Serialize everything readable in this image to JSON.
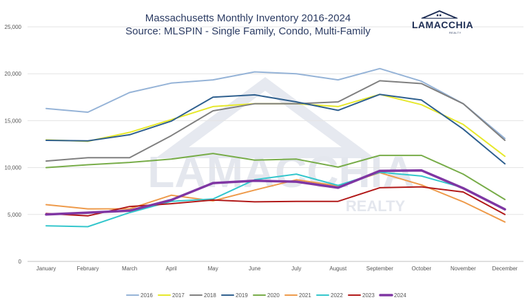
{
  "title_line1": "Massachusetts Monthly Inventory 2016-2024",
  "title_line2": "Source: MLSPIN - Single Family, Condo, Multi-Family",
  "logo": {
    "name": "LAMACCHIA",
    "sub": "REALTY"
  },
  "watermark": {
    "name": "LAMACCHIA",
    "sub": "REALTY"
  },
  "chart_data": {
    "type": "line",
    "title": "Massachusetts Monthly Inventory 2016-2024",
    "subtitle": "Source: MLSPIN - Single Family, Condo, Multi-Family",
    "categories": [
      "January",
      "February",
      "March",
      "April",
      "May",
      "June",
      "July",
      "August",
      "September",
      "October",
      "November",
      "December"
    ],
    "ylim": [
      0,
      25000
    ],
    "yticks": [
      0,
      5000,
      10000,
      15000,
      20000,
      25000
    ],
    "ytick_labels": [
      "0",
      "5,000",
      "10,000",
      "15,000",
      "20,000",
      "25,000"
    ],
    "grid": true,
    "legend_position": "bottom",
    "series": [
      {
        "name": "2016",
        "color": "#95b3d7",
        "width": 2,
        "values": [
          16300,
          15900,
          18000,
          19000,
          19350,
          20200,
          20000,
          19350,
          20550,
          19200,
          16800,
          13100
        ]
      },
      {
        "name": "2017",
        "color": "#e6e82a",
        "width": 2,
        "values": [
          12950,
          12800,
          13750,
          15100,
          16500,
          16800,
          16800,
          16500,
          17800,
          16700,
          14600,
          11200
        ]
      },
      {
        "name": "2018",
        "color": "#7f7f7f",
        "width": 2,
        "values": [
          10700,
          11050,
          11050,
          13400,
          16050,
          16800,
          16800,
          17000,
          19250,
          18950,
          16800,
          12900
        ]
      },
      {
        "name": "2019",
        "color": "#2e5f8e",
        "width": 2,
        "values": [
          12900,
          12850,
          13500,
          14950,
          17500,
          17750,
          17000,
          16100,
          17800,
          17200,
          14100,
          10400
        ]
      },
      {
        "name": "2020",
        "color": "#77ac48",
        "width": 2,
        "values": [
          10000,
          10300,
          10550,
          10900,
          11500,
          10800,
          10900,
          10050,
          11300,
          11300,
          9300,
          6600
        ]
      },
      {
        "name": "2021",
        "color": "#ee9a4a",
        "width": 2,
        "values": [
          6050,
          5600,
          5600,
          7050,
          6450,
          7600,
          8700,
          8050,
          9450,
          8150,
          6350,
          4200
        ]
      },
      {
        "name": "2022",
        "color": "#33c6cc",
        "width": 2,
        "values": [
          3800,
          3700,
          5200,
          6400,
          6650,
          8700,
          9300,
          8100,
          9500,
          9100,
          7850,
          5600
        ]
      },
      {
        "name": "2023",
        "color": "#b11818",
        "width": 2,
        "values": [
          5100,
          4850,
          5850,
          6150,
          6550,
          6350,
          6400,
          6400,
          7850,
          7950,
          7400,
          5000
        ]
      },
      {
        "name": "2024",
        "color": "#7f36a3",
        "width": 3.5,
        "values": [
          5000,
          5200,
          5400,
          6550,
          8350,
          8600,
          8500,
          7850,
          9650,
          9700,
          7800,
          5550
        ]
      }
    ]
  }
}
